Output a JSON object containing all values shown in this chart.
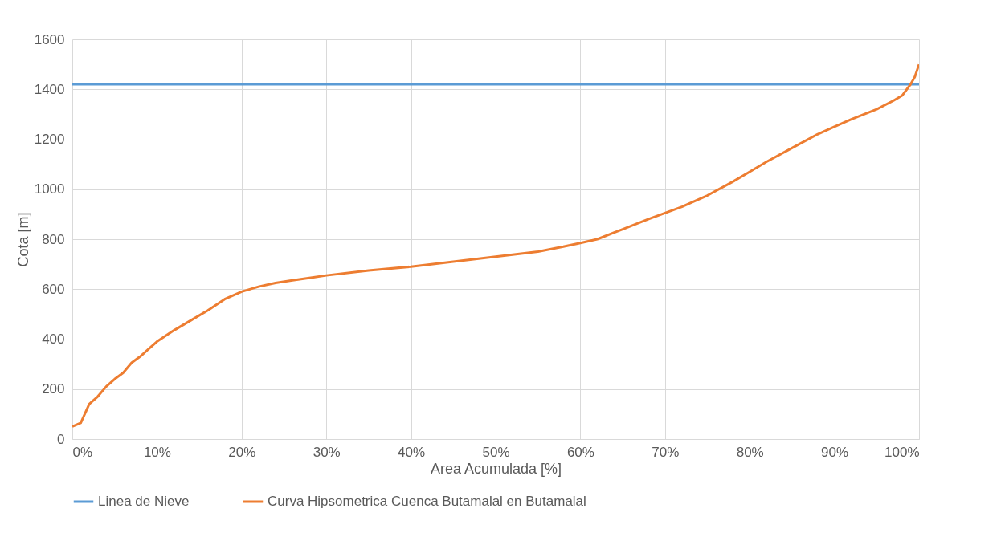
{
  "chart_data": {
    "type": "line",
    "xlabel": "Area Acumulada [%]",
    "ylabel": "Cota [m]",
    "xlim": [
      0,
      100
    ],
    "xticks": [
      {
        "value": 0,
        "label": "0%"
      },
      {
        "value": 10,
        "label": "10%"
      },
      {
        "value": 20,
        "label": "20%"
      },
      {
        "value": 30,
        "label": "30%"
      },
      {
        "value": 40,
        "label": "40%"
      },
      {
        "value": 50,
        "label": "50%"
      },
      {
        "value": 60,
        "label": "60%"
      },
      {
        "value": 70,
        "label": "70%"
      },
      {
        "value": 80,
        "label": "80%"
      },
      {
        "value": 90,
        "label": "90%"
      },
      {
        "value": 100,
        "label": "100%"
      }
    ],
    "ylim": [
      0,
      1600
    ],
    "yticks": [
      0,
      200,
      400,
      600,
      800,
      1000,
      1200,
      1400,
      1600
    ],
    "grid": true,
    "legend": "bottom",
    "series": [
      {
        "name": "Linea de Nieve",
        "color": "#5b9bd5",
        "x": [
          0,
          100
        ],
        "values": [
          1420,
          1420
        ]
      },
      {
        "name": "Curva Hipsometrica Cuenca Butamalal en Butamalal",
        "color": "#ed7d31",
        "x": [
          0,
          1,
          2,
          3,
          4,
          5,
          6,
          7,
          8,
          9,
          10,
          12,
          14,
          16,
          18,
          20,
          22,
          24,
          26,
          28,
          30,
          35,
          40,
          45,
          50,
          55,
          58,
          60,
          62,
          65,
          68,
          70,
          72,
          75,
          78,
          80,
          82,
          85,
          88,
          90,
          92,
          95,
          97,
          98,
          99,
          99.5,
          100
        ],
        "values": [
          50,
          65,
          140,
          170,
          210,
          240,
          265,
          305,
          330,
          360,
          390,
          435,
          475,
          515,
          560,
          590,
          610,
          625,
          635,
          645,
          655,
          675,
          690,
          710,
          730,
          750,
          770,
          785,
          800,
          840,
          880,
          905,
          930,
          975,
          1030,
          1070,
          1110,
          1165,
          1220,
          1250,
          1280,
          1320,
          1355,
          1375,
          1420,
          1450,
          1500
        ]
      }
    ]
  }
}
